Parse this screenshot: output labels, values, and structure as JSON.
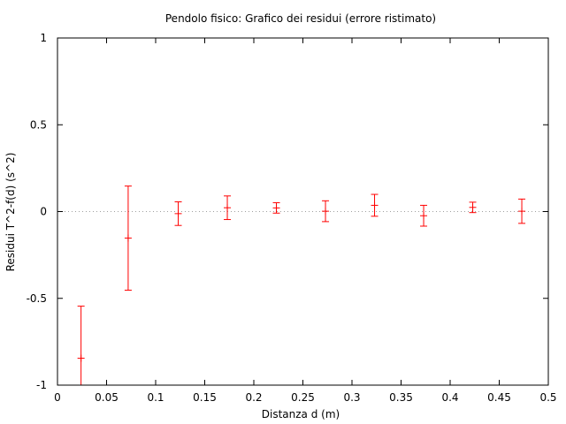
{
  "chart_data": {
    "type": "scatter",
    "title": "Pendolo fisico: Grafico dei residui (errore ristimato)",
    "xlabel": "Distanza d (m)",
    "ylabel": "Residui T^2-f(d) (s^2)",
    "xlim": [
      0,
      0.5
    ],
    "ylim": [
      -1,
      1
    ],
    "xticks": [
      "0",
      "0.05",
      "0.1",
      "0.15",
      "0.2",
      "0.25",
      "0.3",
      "0.35",
      "0.4",
      "0.45",
      "0.5"
    ],
    "yticks": [
      "-1",
      "-0.5",
      "0",
      "0.5",
      "1"
    ],
    "grid": false,
    "zero_line": true,
    "series": [
      {
        "color": "#ff0000",
        "points": [
          {
            "x": 0.024,
            "y": -0.845,
            "err": 0.3
          },
          {
            "x": 0.072,
            "y": -0.153,
            "err": 0.3
          },
          {
            "x": 0.123,
            "y": -0.012,
            "err": 0.068
          },
          {
            "x": 0.173,
            "y": 0.022,
            "err": 0.068
          },
          {
            "x": 0.223,
            "y": 0.021,
            "err": 0.03
          },
          {
            "x": 0.273,
            "y": 0.002,
            "err": 0.06
          },
          {
            "x": 0.323,
            "y": 0.036,
            "err": 0.063
          },
          {
            "x": 0.373,
            "y": -0.024,
            "err": 0.06
          },
          {
            "x": 0.423,
            "y": 0.024,
            "err": 0.03
          },
          {
            "x": 0.473,
            "y": 0.002,
            "err": 0.07
          }
        ]
      }
    ]
  }
}
